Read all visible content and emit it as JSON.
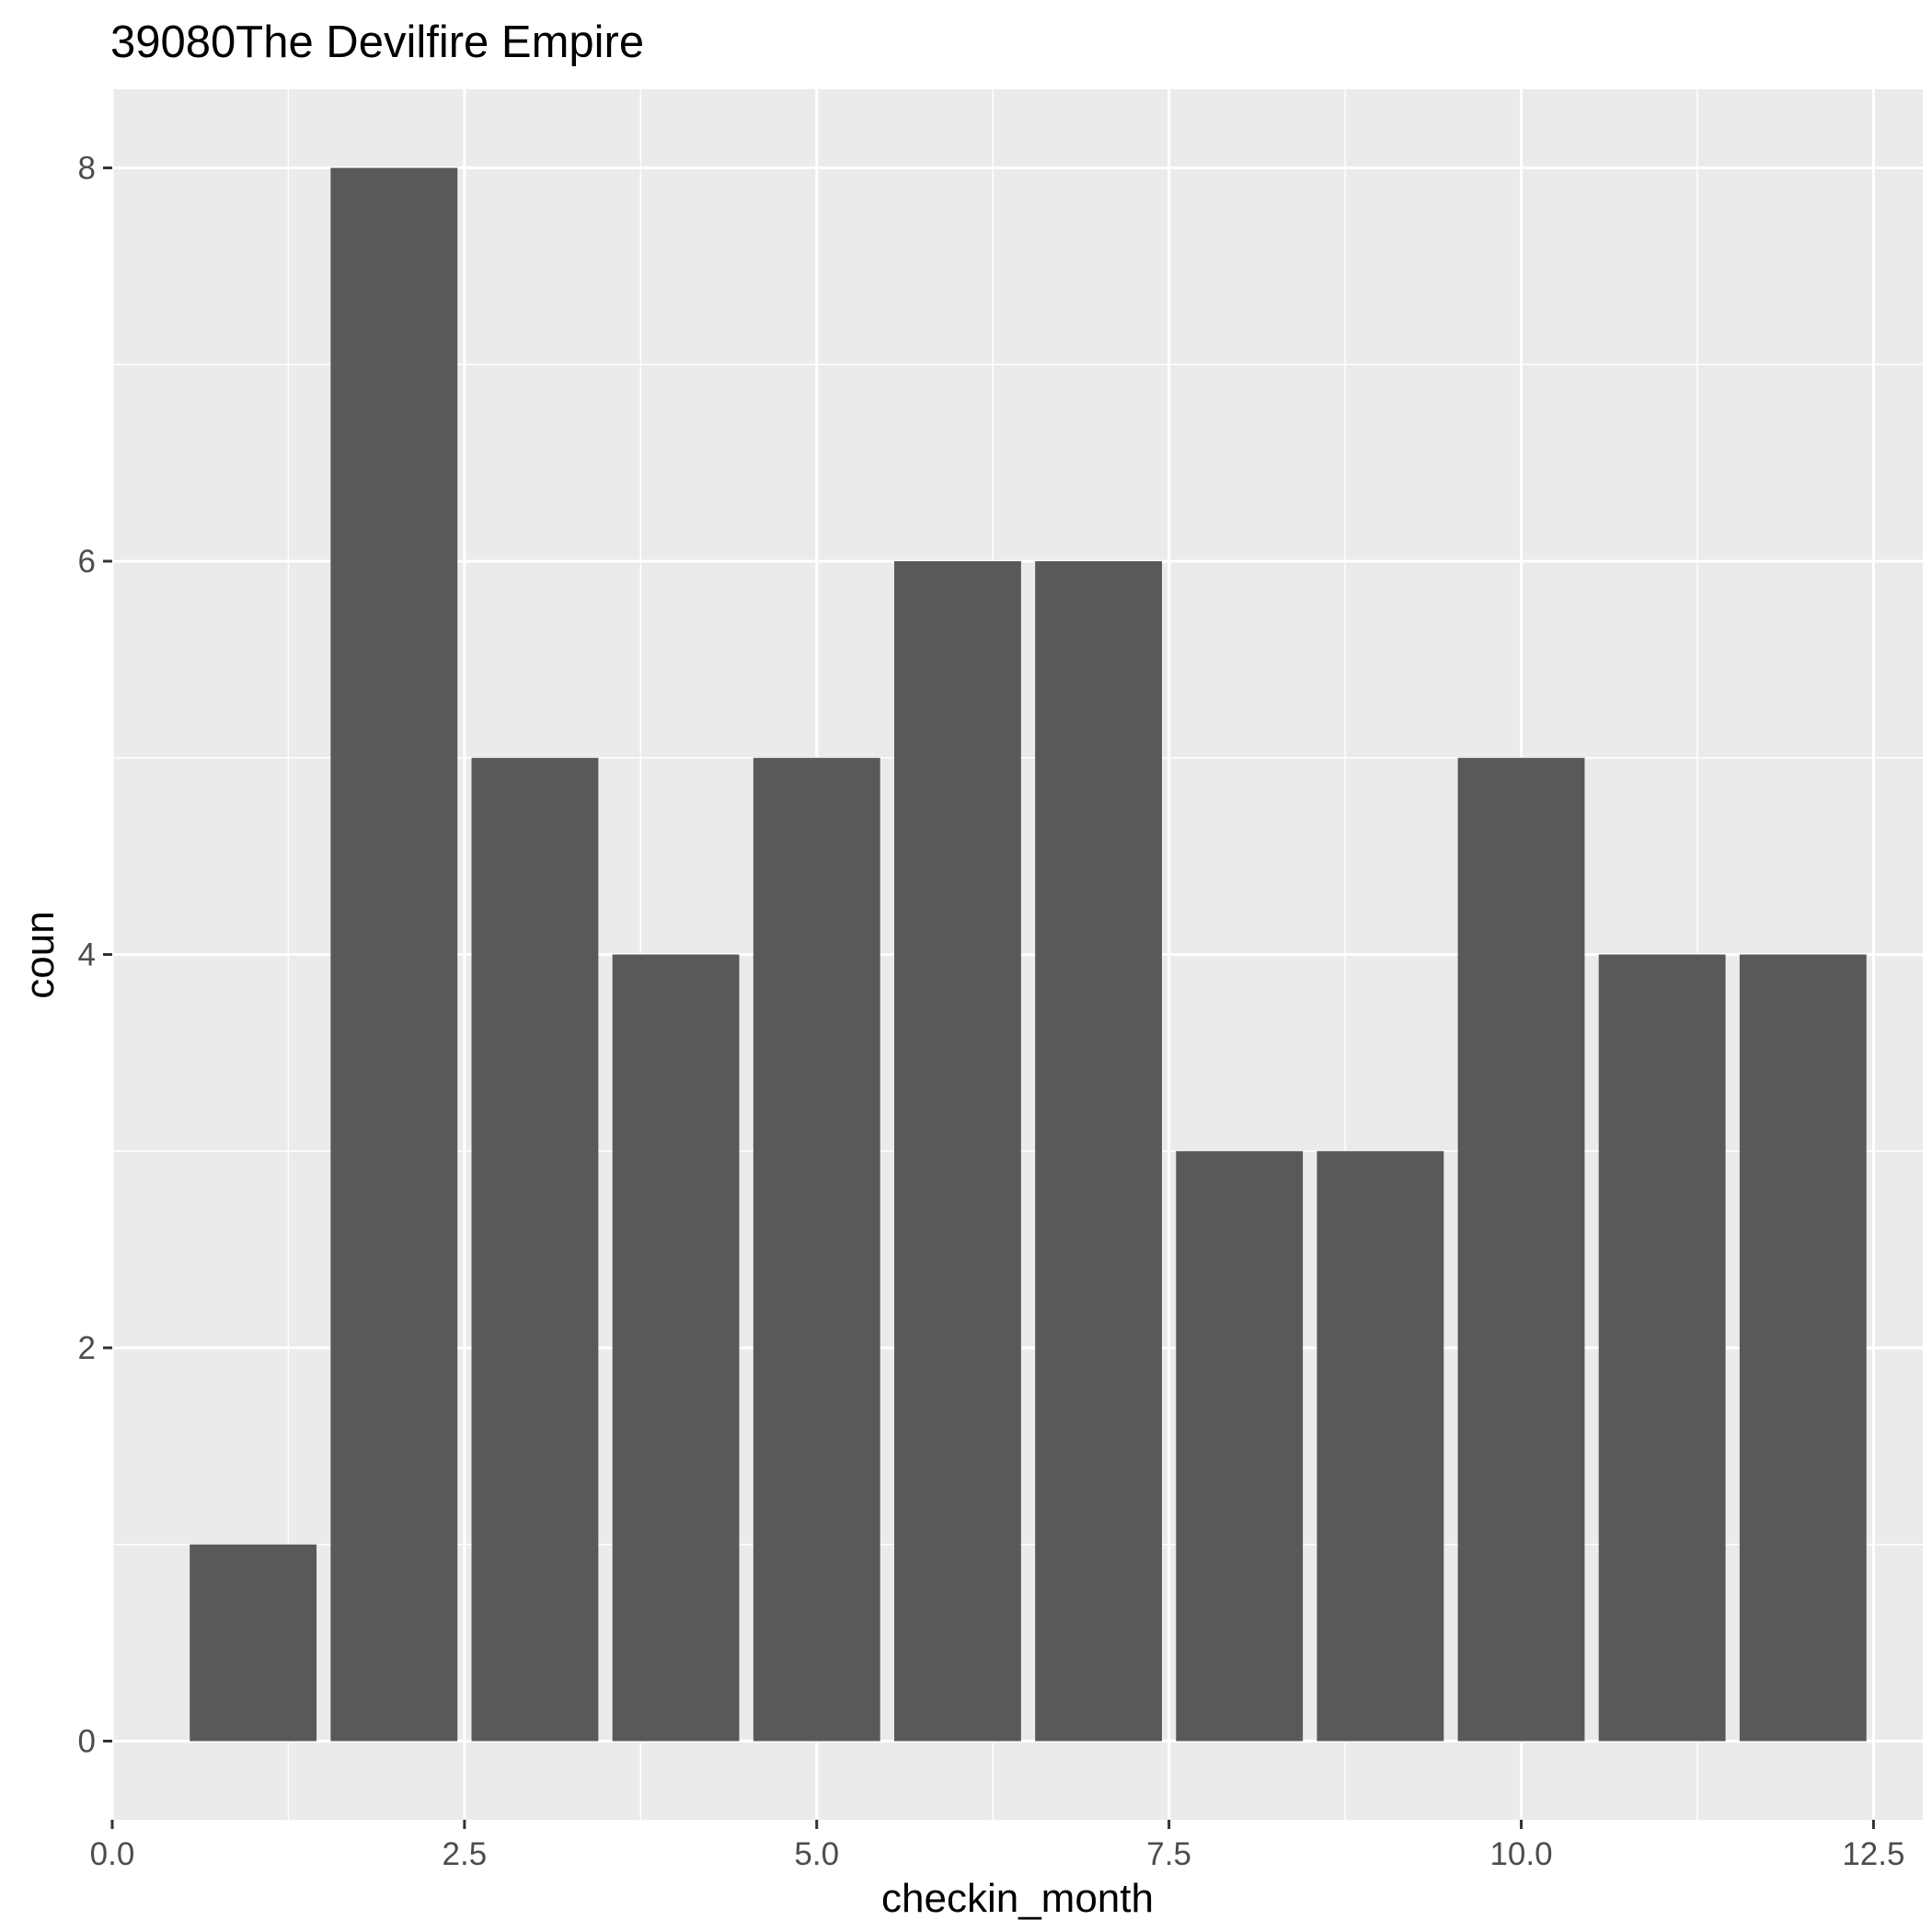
{
  "chart_data": {
    "type": "bar",
    "title": "39080The Devilfire Empire",
    "xlabel": "checkin_month",
    "ylabel": "coun",
    "x": [
      1,
      2,
      3,
      4,
      5,
      6,
      7,
      8,
      9,
      10,
      11,
      12
    ],
    "values": [
      1,
      8,
      5,
      4,
      5,
      6,
      6,
      3,
      3,
      5,
      4,
      4
    ],
    "xlim": [
      0,
      12.85
    ],
    "ylim": [
      -0.4,
      8.4
    ],
    "xticks": [
      0.0,
      2.5,
      5.0,
      7.5,
      10.0,
      12.5
    ],
    "xtick_labels": [
      "0.0",
      "2.5",
      "5.0",
      "7.5",
      "10.0",
      "12.5"
    ],
    "yticks": [
      0,
      2,
      4,
      6,
      8
    ],
    "ytick_labels": [
      "0",
      "2",
      "4",
      "6",
      "8"
    ],
    "grid": true,
    "colors": {
      "panel": "#ebebeb",
      "grid": "#ffffff",
      "bar": "#595959",
      "tick": "#333333"
    }
  }
}
